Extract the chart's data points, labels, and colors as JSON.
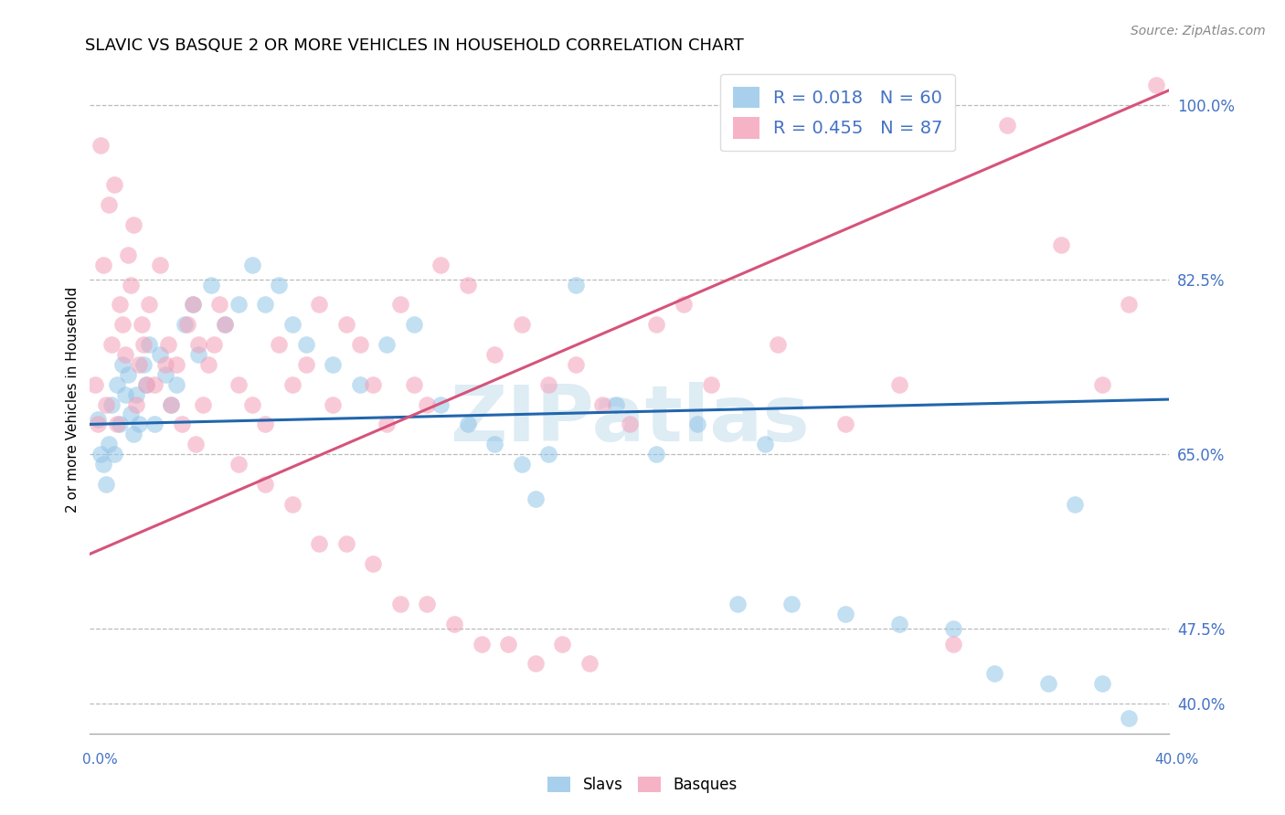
{
  "title": "SLAVIC VS BASQUE 2 OR MORE VEHICLES IN HOUSEHOLD CORRELATION CHART",
  "source": "Source: ZipAtlas.com",
  "ylabel": "2 or more Vehicles in Household",
  "watermark": "ZIPatlas",
  "slavs_R": 0.018,
  "slavs_N": 60,
  "basques_R": 0.455,
  "basques_N": 87,
  "slavs_color": "#92c5e8",
  "basques_color": "#f4a0b8",
  "slavs_line_color": "#2166ac",
  "basques_line_color": "#d6537a",
  "y_ticks": [
    40.0,
    47.5,
    65.0,
    82.5,
    100.0
  ],
  "y_labels": [
    "40.0%",
    "47.5%",
    "65.0%",
    "82.5%",
    "100.0%"
  ],
  "x_range": [
    0.0,
    40.0
  ],
  "y_range": [
    37.0,
    104.0
  ],
  "slavs_line_x0": 0.0,
  "slavs_line_y0": 68.0,
  "slavs_line_x1": 40.0,
  "slavs_line_y1": 70.5,
  "basques_line_x0": 0.0,
  "basques_line_y0": 55.0,
  "basques_line_x1": 40.0,
  "basques_line_y1": 101.5,
  "slavs_x": [
    0.3,
    0.4,
    0.5,
    0.6,
    0.7,
    0.8,
    0.9,
    1.0,
    1.1,
    1.2,
    1.3,
    1.4,
    1.5,
    1.6,
    1.7,
    1.8,
    2.0,
    2.1,
    2.2,
    2.4,
    2.6,
    2.8,
    3.0,
    3.2,
    3.5,
    3.8,
    4.0,
    4.5,
    5.0,
    5.5,
    6.0,
    6.5,
    7.0,
    7.5,
    8.0,
    9.0,
    10.0,
    11.0,
    12.0,
    13.0,
    14.0,
    15.0,
    16.0,
    17.0,
    18.0,
    19.5,
    21.0,
    22.5,
    24.0,
    25.0,
    26.0,
    28.0,
    30.0,
    32.0,
    33.5,
    35.5,
    36.5,
    37.5,
    38.5,
    16.5
  ],
  "slavs_y": [
    68.5,
    65.0,
    64.0,
    62.0,
    66.0,
    70.0,
    65.0,
    72.0,
    68.0,
    74.0,
    71.0,
    73.0,
    69.0,
    67.0,
    71.0,
    68.0,
    74.0,
    72.0,
    76.0,
    68.0,
    75.0,
    73.0,
    70.0,
    72.0,
    78.0,
    80.0,
    75.0,
    82.0,
    78.0,
    80.0,
    84.0,
    80.0,
    82.0,
    78.0,
    76.0,
    74.0,
    72.0,
    76.0,
    78.0,
    70.0,
    68.0,
    66.0,
    64.0,
    65.0,
    82.0,
    70.0,
    65.0,
    68.0,
    50.0,
    66.0,
    50.0,
    49.0,
    48.0,
    47.5,
    43.0,
    42.0,
    60.0,
    42.0,
    38.5,
    60.5
  ],
  "basques_x": [
    0.2,
    0.3,
    0.5,
    0.6,
    0.7,
    0.8,
    1.0,
    1.1,
    1.2,
    1.3,
    1.4,
    1.5,
    1.6,
    1.7,
    1.8,
    2.0,
    2.1,
    2.2,
    2.4,
    2.6,
    2.8,
    3.0,
    3.2,
    3.4,
    3.6,
    3.8,
    4.0,
    4.2,
    4.4,
    4.6,
    4.8,
    5.0,
    5.5,
    6.0,
    6.5,
    7.0,
    7.5,
    8.0,
    8.5,
    9.0,
    9.5,
    10.0,
    10.5,
    11.0,
    11.5,
    12.0,
    12.5,
    13.0,
    14.0,
    15.0,
    16.0,
    17.0,
    18.0,
    19.0,
    20.0,
    21.0,
    22.0,
    23.0,
    24.0,
    25.5,
    28.0,
    30.0,
    32.0,
    34.0,
    36.0,
    37.5,
    38.5,
    39.5,
    0.4,
    0.9,
    1.9,
    2.9,
    3.9,
    5.5,
    6.5,
    7.5,
    8.5,
    9.5,
    10.5,
    11.5,
    12.5,
    13.5,
    14.5,
    15.5,
    16.5,
    17.5,
    18.5
  ],
  "basques_y": [
    72.0,
    68.0,
    84.0,
    70.0,
    90.0,
    76.0,
    68.0,
    80.0,
    78.0,
    75.0,
    85.0,
    82.0,
    88.0,
    70.0,
    74.0,
    76.0,
    72.0,
    80.0,
    72.0,
    84.0,
    74.0,
    70.0,
    74.0,
    68.0,
    78.0,
    80.0,
    76.0,
    70.0,
    74.0,
    76.0,
    80.0,
    78.0,
    72.0,
    70.0,
    68.0,
    76.0,
    72.0,
    74.0,
    80.0,
    70.0,
    78.0,
    76.0,
    72.0,
    68.0,
    80.0,
    72.0,
    70.0,
    84.0,
    82.0,
    75.0,
    78.0,
    72.0,
    74.0,
    70.0,
    68.0,
    78.0,
    80.0,
    72.0,
    100.0,
    76.0,
    68.0,
    72.0,
    46.0,
    98.0,
    86.0,
    72.0,
    80.0,
    102.0,
    96.0,
    92.0,
    78.0,
    76.0,
    66.0,
    64.0,
    62.0,
    60.0,
    56.0,
    56.0,
    54.0,
    50.0,
    50.0,
    48.0,
    46.0,
    46.0,
    44.0,
    46.0,
    44.0
  ]
}
